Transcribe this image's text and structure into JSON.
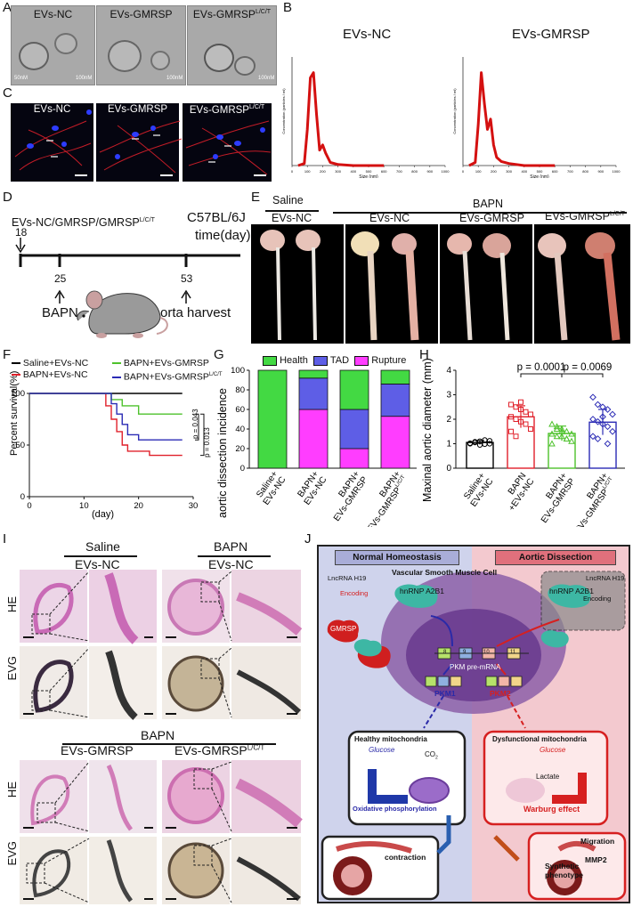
{
  "panels": {
    "A": "A",
    "B": "B",
    "C": "C",
    "D": "D",
    "E": "E",
    "F": "F",
    "G": "G",
    "H": "H",
    "I": "I",
    "J": "J"
  },
  "panelA": {
    "groups": [
      "EVs-NC",
      "EVs-GMRSP",
      "EVs-GMRSP"
    ],
    "sup": "L/C/T",
    "scale_small": "50nM",
    "scale_large": "100nM"
  },
  "panelB": {
    "titles": [
      "EVs-NC",
      "EVs-GMRSP"
    ],
    "ylabel": "Concentration (particles / ml)",
    "xlabel": "Size (nm)",
    "xticks": [
      "0",
      "100",
      "200",
      "300",
      "400",
      "500",
      "600",
      "700",
      "800",
      "900",
      "1000"
    ]
  },
  "panelC": {
    "groups": [
      "EVs-NC",
      "EVs-GMRSP",
      "EVs-GMRSP"
    ],
    "sup": "L/C/T"
  },
  "panelD": {
    "top_label": "EVs-NC/GMRSP/GMRSP",
    "sup": "L/C/T",
    "strain": "C57BL/6J",
    "timeunit": "time(day)",
    "day18": "18",
    "day25": "25",
    "day53": "53",
    "bapn": "BAPN",
    "harvest": "Aorta harvest"
  },
  "panelE": {
    "saline": "Saline",
    "bapn": "BAPN",
    "groups": [
      "EVs-NC",
      "EVs-NC",
      "EVs-GMRSP",
      "EVs-GMRSP"
    ],
    "sup": "L/C/T"
  },
  "panelF": {
    "ylabel": "Percent survival(%)",
    "xlabel": "(day)",
    "p1": "p = 0.043",
    "p2": "p = 0.013",
    "legend": [
      "Saline+EVs-NC",
      "BAPN+EVs-NC",
      "BAPN+EVs-GMRSP",
      "BAPN+EVs-GMRSP"
    ],
    "legend_sup": "L/C/T",
    "colors": [
      "#000000",
      "#e0202a",
      "#4ec22c",
      "#2b2bb5"
    ]
  },
  "panelG": {
    "ylabel": "aortic dissection incidence",
    "legend": [
      "Health",
      "TAD",
      "Rupture"
    ],
    "colors": [
      "#43d943",
      "#5e5ee6",
      "#ff3dff"
    ],
    "cats": [
      [
        "Saline+",
        "EVs-NC"
      ],
      [
        "BAPN+",
        "EVs-NC"
      ],
      [
        "BAPN+",
        "EVs-GMRSP"
      ],
      [
        "BAPN+",
        "EVs-GMRSP"
      ]
    ],
    "sup": "L/C/T"
  },
  "panelH": {
    "ylabel": "Maxinal aortic diameter (mm)",
    "p1": "p = 0.0001",
    "p2": "p = 0.0069",
    "cats": [
      [
        "Saline+",
        "EVs-NC"
      ],
      [
        "BAPN",
        "+EVs-NC"
      ],
      [
        "BAPN+",
        "EVs-GMRSP"
      ],
      [
        "BAPN+",
        "EVs-GMRSP"
      ]
    ],
    "sup": "L/C/T",
    "colors": [
      "#000000",
      "#e0202a",
      "#4ec22c",
      "#2b2bb5"
    ]
  },
  "panelI": {
    "saline": "Saline",
    "bapn": "BAPN",
    "nc": "EVs-NC",
    "gmrsp": "EVs-GMRSP",
    "sup": "L/C/T",
    "he": "HE",
    "evg": "EVG"
  },
  "panelJ": {
    "left_title": "Normal Homeostasis",
    "right_title": "Aortic Dissection",
    "cell": "Vascular Smooth Muscle Cell",
    "lnc": "LncRNA H19",
    "encoding": "Encoding",
    "hnrnp": "hnRNP A2B1",
    "gmrsp": "GMRSP",
    "pkm_pre": "PKM pre-mRNA",
    "pkm1": "PKM1",
    "pkm2": "PKM2",
    "exon8": "8",
    "exon9": "9",
    "exon10": "10",
    "exon11": "11",
    "healthy_mito": "Healthy mitochondria",
    "dys_mito": "Dysfunctional mitochondria",
    "glucose": "Glucose",
    "co2": "CO",
    "co2_sub": "2",
    "lactate": "Lactate",
    "oxphos": "Oxidative phosphorylation",
    "warburg": "Warburg effect",
    "contraction": "contraction",
    "migration": "Migration",
    "mmp2": "MMP2",
    "synthetic": "Synthetic",
    "phenotype": "phenotype"
  },
  "chart_data": [
    {
      "panel": "F",
      "type": "line",
      "title": "",
      "xlabel": "(day)",
      "ylabel": "Percent survival(%)",
      "xlim": [
        0,
        30
      ],
      "ylim": [
        0,
        100
      ],
      "xticks": [
        0,
        10,
        20,
        30
      ],
      "yticks": [
        0,
        50,
        100
      ],
      "series": [
        {
          "name": "Saline+EVs-NC",
          "x": [
            0,
            28
          ],
          "y": [
            100,
            100
          ]
        },
        {
          "name": "BAPN+EVs-NC",
          "x": [
            0,
            14,
            15,
            16,
            17,
            18,
            20,
            22,
            25,
            28
          ],
          "y": [
            100,
            88,
            75,
            63,
            50,
            44,
            44,
            40,
            40,
            40
          ]
        },
        {
          "name": "BAPN+EVs-GMRSP",
          "x": [
            0,
            15,
            17,
            18,
            20,
            28
          ],
          "y": [
            100,
            94,
            88,
            88,
            80,
            80
          ]
        },
        {
          "name": "BAPN+EVs-GMRSP",
          "x": [
            0,
            15,
            16,
            17,
            18,
            20,
            22,
            28
          ],
          "y": [
            100,
            90,
            80,
            70,
            60,
            55,
            55,
            55
          ]
        }
      ]
    },
    {
      "panel": "G",
      "type": "bar",
      "title": "",
      "ylabel": "aortic dissection incidence",
      "ylim": [
        0,
        100
      ],
      "yticks": [
        0,
        20,
        40,
        60,
        80,
        100
      ],
      "categories": [
        "Saline+EVs-NC",
        "BAPN+EVs-NC",
        "BAPN+EVs-GMRSP",
        "BAPN+EVs-GMRSP"
      ],
      "series": [
        {
          "name": "Rupture",
          "values": [
            0,
            60,
            20,
            53
          ]
        },
        {
          "name": "TAD",
          "values": [
            0,
            32,
            40,
            33
          ]
        },
        {
          "name": "Health",
          "values": [
            100,
            8,
            40,
            14
          ]
        }
      ]
    },
    {
      "panel": "H",
      "type": "bar",
      "title": "",
      "ylabel": "Maxinal aortic diameter (mm)",
      "ylim": [
        0,
        4
      ],
      "yticks": [
        0,
        1,
        2,
        3,
        4
      ],
      "categories": [
        "Saline+EVs-NC",
        "BAPN+EVs-NC",
        "BAPN+EVs-GMRSP",
        "BAPN+EVs-GMRSP"
      ],
      "values": [
        1.05,
        2.1,
        1.42,
        1.88
      ],
      "errors": [
        0.08,
        0.45,
        0.3,
        0.52
      ],
      "points": [
        [
          1.0,
          1.05,
          1.1,
          0.98,
          1.12,
          1.02,
          1.08,
          0.95,
          1.15,
          1.0
        ],
        [
          2.6,
          2.5,
          2.4,
          2.3,
          2.2,
          2.1,
          2.0,
          1.9,
          1.8,
          1.6,
          1.5,
          1.3,
          2.7
        ],
        [
          1.8,
          1.7,
          1.6,
          1.5,
          1.4,
          1.4,
          1.3,
          1.3,
          1.2,
          1.1,
          1.0,
          1.6,
          1.5,
          1.2
        ],
        [
          2.9,
          2.6,
          2.5,
          2.4,
          2.2,
          2.0,
          1.9,
          1.8,
          1.7,
          1.5,
          1.3,
          1.2,
          2.1,
          1.0
        ]
      ]
    },
    {
      "panel": "B",
      "type": "line",
      "title": "EVs-NC",
      "xlabel": "Size (nm)",
      "ylabel": "Concentration (particles / ml)",
      "xlim": [
        0,
        1000
      ],
      "series": [
        {
          "x": [
            40,
            80,
            100,
            120,
            140,
            160,
            180,
            200,
            220,
            250,
            300,
            400,
            600
          ],
          "y": [
            0,
            0.02,
            0.35,
            0.85,
            0.9,
            0.5,
            0.15,
            0.2,
            0.12,
            0.03,
            0.01,
            0,
            0
          ]
        }
      ]
    },
    {
      "panel": "B",
      "type": "line",
      "title": "EVs-GMRSP",
      "xlabel": "Size (nm)",
      "ylabel": "Concentration (particles / ml)",
      "xlim": [
        0,
        1000
      ],
      "series": [
        {
          "x": [
            40,
            80,
            100,
            120,
            140,
            160,
            180,
            200,
            220,
            250,
            300,
            400,
            600
          ],
          "y": [
            0,
            0.03,
            0.4,
            0.9,
            0.6,
            0.35,
            0.45,
            0.2,
            0.08,
            0.04,
            0.02,
            0,
            0
          ]
        }
      ]
    }
  ]
}
